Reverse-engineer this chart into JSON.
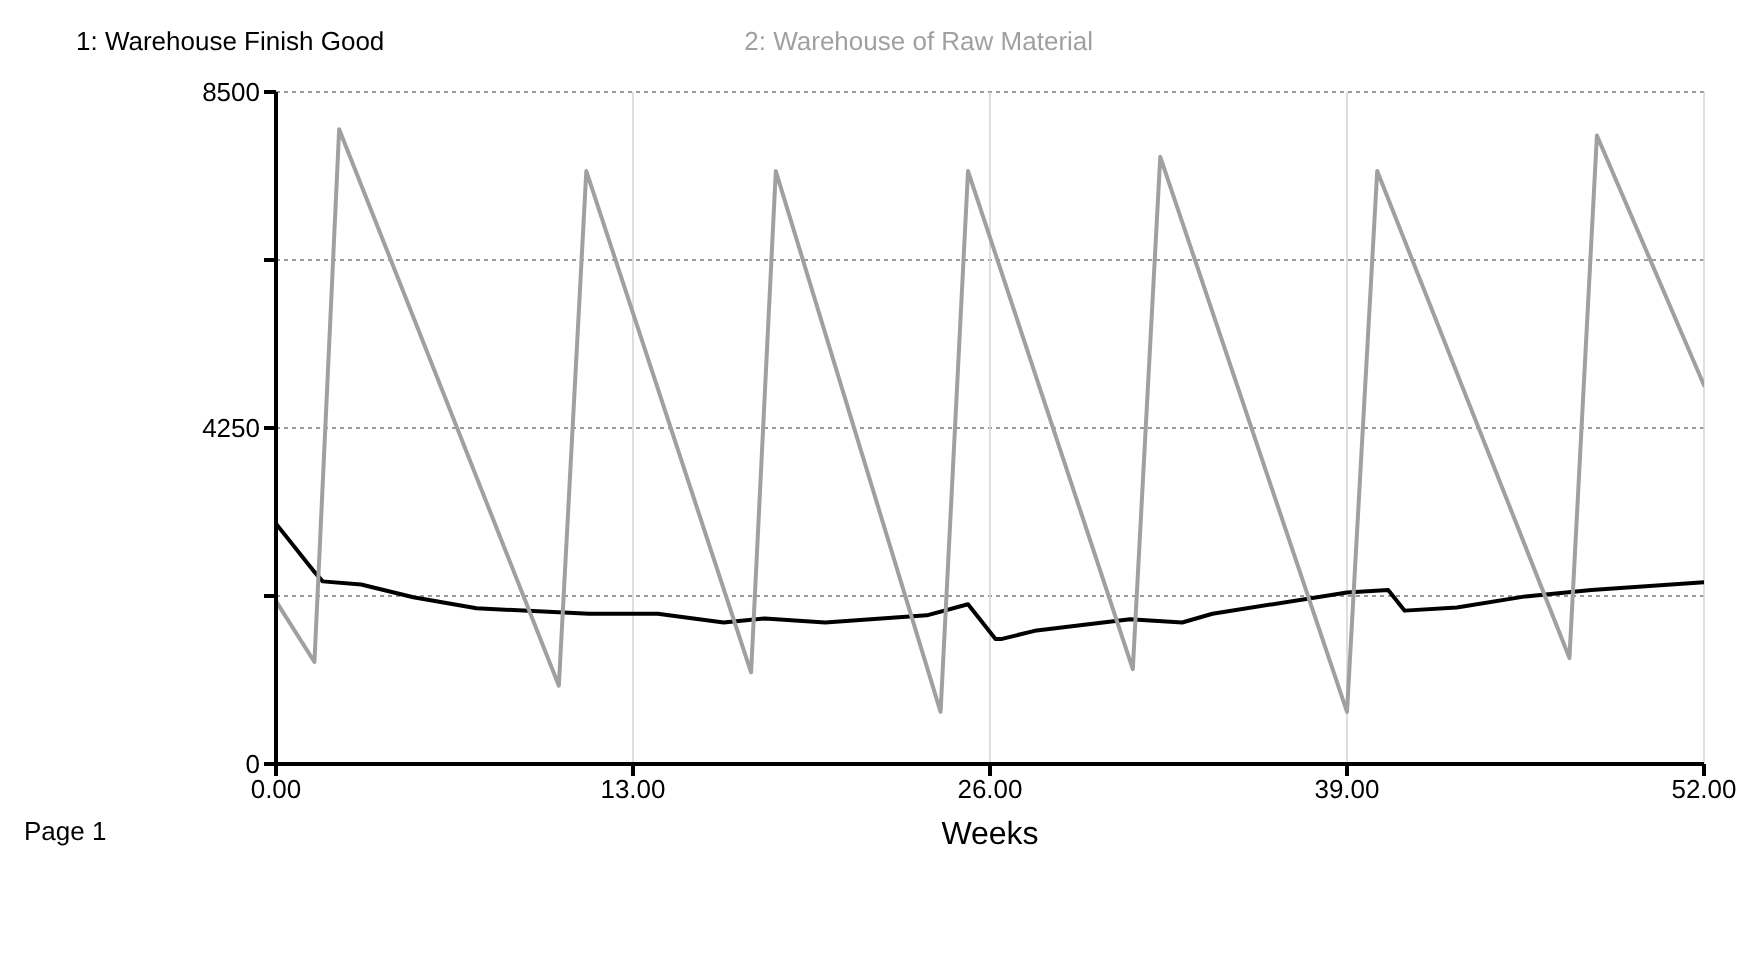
{
  "chart_data": {
    "type": "line",
    "xlabel": "Weeks",
    "annotations": [
      "Page 1"
    ],
    "xlim": [
      0,
      52
    ],
    "xticks": [
      {
        "value": 0,
        "label": "0.00"
      },
      {
        "value": 13,
        "label": "13.00"
      },
      {
        "value": 26,
        "label": "26.00"
      },
      {
        "value": 39,
        "label": "39.00"
      },
      {
        "value": 52,
        "label": "52.00"
      }
    ],
    "ylim": [
      0,
      8500
    ],
    "yticks": [
      0,
      {
        "value": 2125,
        "label": null
      },
      4250,
      {
        "value": 6375,
        "label": null
      },
      8500
    ],
    "grid": true,
    "legend": "top",
    "marker": "none",
    "line_style": "solid",
    "series": [
      {
        "name": "1: Warehouse  Finish Good",
        "color": "#000000",
        "x": [
          0,
          1.4,
          1.7,
          3.1,
          5,
          7.3,
          11.4,
          13.9,
          16.3,
          17.8,
          20,
          23.7,
          25.2,
          26.2,
          26.4,
          27.7,
          31.1,
          33,
          34.1,
          39,
          40.5,
          41.1,
          43,
          45.5,
          47.9,
          52
        ],
        "values": [
          3040,
          2430,
          2310,
          2270,
          2110,
          1970,
          1900,
          1900,
          1790,
          1840,
          1790,
          1880,
          2020,
          1580,
          1580,
          1690,
          1830,
          1790,
          1900,
          2170,
          2200,
          1940,
          1980,
          2120,
          2200,
          2300
        ]
      },
      {
        "name": "2: Warehouse of  Raw Material",
        "color": "#a0a0a0",
        "x": [
          0,
          1.4,
          2.3,
          10.3,
          11.3,
          17.3,
          18.2,
          24.2,
          25.2,
          31.2,
          32.2,
          39,
          40.1,
          47.1,
          48.1,
          52
        ],
        "values": [
          2060,
          1290,
          8030,
          990,
          7500,
          1160,
          7500,
          660,
          7500,
          1200,
          7680,
          660,
          7500,
          1340,
          7950,
          4790
        ]
      }
    ]
  }
}
